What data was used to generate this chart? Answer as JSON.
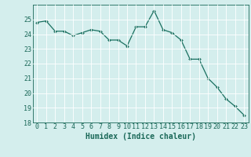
{
  "x": [
    0,
    1,
    2,
    3,
    4,
    5,
    6,
    7,
    8,
    9,
    10,
    11,
    12,
    13,
    14,
    15,
    16,
    17,
    18,
    19,
    20,
    21,
    22,
    23
  ],
  "y": [
    24.8,
    24.9,
    24.2,
    24.2,
    23.9,
    24.1,
    24.3,
    24.2,
    23.6,
    23.6,
    23.2,
    24.5,
    24.5,
    25.6,
    24.3,
    24.1,
    23.6,
    22.3,
    22.3,
    21.0,
    20.4,
    19.6,
    19.1,
    18.5
  ],
  "line_color": "#1a7060",
  "marker": "D",
  "marker_size": 2.0,
  "linewidth": 0.9,
  "background_color": "#d4eeed",
  "grid_color": "#ffffff",
  "xlabel": "Humidex (Indice chaleur)",
  "ylim": [
    18,
    26
  ],
  "xlim": [
    -0.5,
    23.5
  ],
  "yticks": [
    18,
    19,
    20,
    21,
    22,
    23,
    24,
    25
  ],
  "xticks": [
    0,
    1,
    2,
    3,
    4,
    5,
    6,
    7,
    8,
    9,
    10,
    11,
    12,
    13,
    14,
    15,
    16,
    17,
    18,
    19,
    20,
    21,
    22,
    23
  ],
  "xlabel_fontsize": 7,
  "tick_fontsize": 6,
  "tick_color": "#1a6858"
}
